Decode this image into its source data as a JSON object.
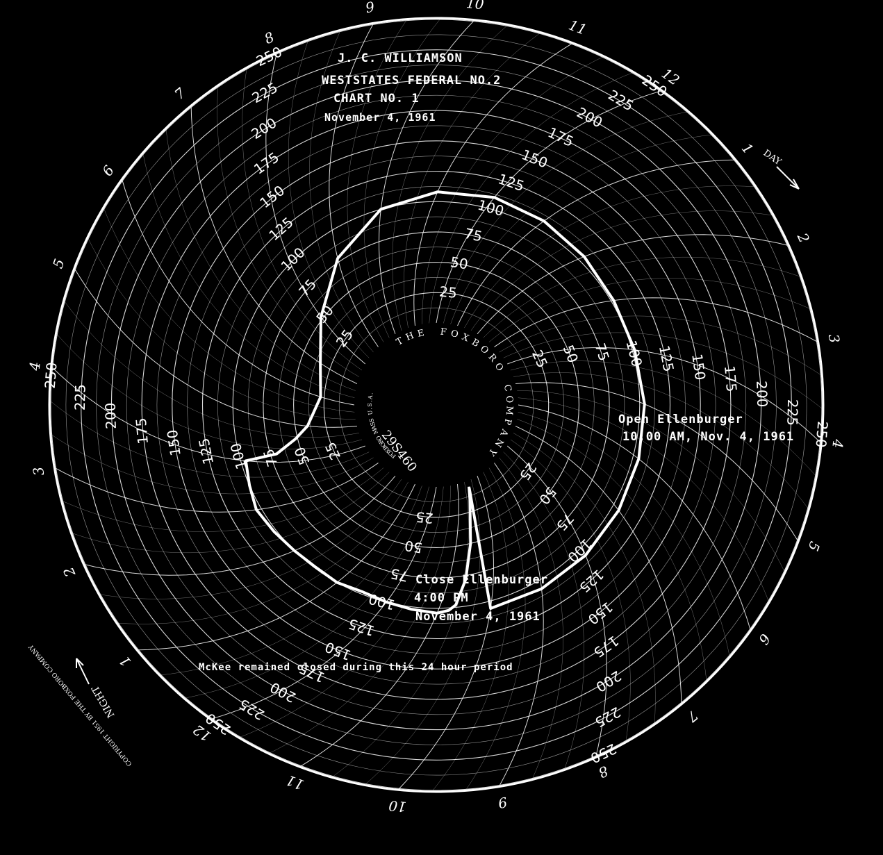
{
  "header": {
    "line1": "J. C. WILLIAMSON",
    "line2": "WESTSTATES FEDERAL NO.2",
    "line3": "CHART NO. 1",
    "line4": "November 4, 1961"
  },
  "annotations": {
    "open_label": "Open Ellenburger",
    "open_time": "10:00 AM, Nov. 4, 1961",
    "close_label": "Close Ellenburger",
    "close_time": "4:00 PM",
    "close_date": "November 4, 1961",
    "footnote": "McKee remained closed during this 24 hour period"
  },
  "hub": {
    "maker": "THE FOXBORO COMPANY",
    "serial": "29S460",
    "city": "FOXBORO MASS U.S.A."
  },
  "rim": {
    "day_label": "DAY",
    "night_label": "NIGHT",
    "copyright": "COPYRIGHT 1951 BY THE FOXBORO COMPANY"
  },
  "colors": {
    "background": "#000000",
    "ink": "#ffffff"
  },
  "chart_data": {
    "type": "line",
    "coordinate_system": "polar",
    "radial_ticks": [
      "25",
      "50",
      "75",
      "100",
      "125",
      "150",
      "175",
      "200",
      "225",
      "250"
    ],
    "radial_range": [
      0,
      250
    ],
    "hour_labels": [
      "12",
      "1",
      "2",
      "3",
      "4",
      "5",
      "6",
      "7",
      "8",
      "9",
      "10",
      "11",
      "12",
      "1",
      "2",
      "3",
      "4",
      "5",
      "6",
      "7",
      "8",
      "9",
      "10",
      "11"
    ],
    "grid": true,
    "series": [
      {
        "hours": [
          10.5,
          10.55,
          10.6,
          10.62,
          10.7,
          10.8,
          11.0,
          11.5,
          12.0,
          12.5,
          13.0,
          13.5,
          14.0,
          14.5,
          15.0,
          15.5,
          16.0,
          16.2,
          16.6,
          17.0,
          18.0,
          19.0,
          20.0,
          21.0,
          22.0,
          23.0,
          24.0,
          25.0,
          26.0,
          27.0,
          28.0,
          29.0,
          30.0,
          31.0,
          32.0,
          33.0,
          34.0,
          34.5
        ],
        "values": [
          5,
          15,
          50,
          78,
          98,
          102,
          104,
          102,
          100,
          98,
          100,
          99,
          100,
          102,
          104,
          100,
          96,
          70,
          52,
          40,
          28,
          34,
          52,
          78,
          100,
          108,
          110,
          108,
          105,
          102,
          102,
          104,
          105,
          106,
          107,
          107,
          106,
          6
        ]
      }
    ]
  }
}
